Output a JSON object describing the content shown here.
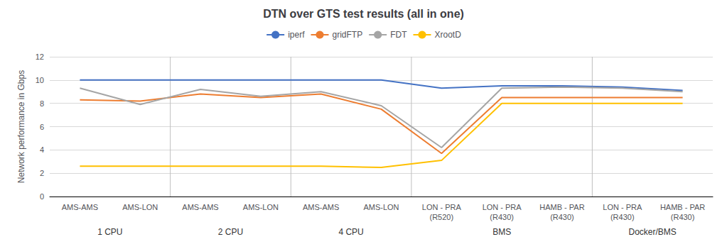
{
  "chart_data": {
    "type": "line",
    "title": "DTN over GTS test results (all in one)",
    "ylabel": "Network performance in Gbps",
    "categories": [
      "AMS-AMS",
      "AMS-LON",
      "AMS-AMS",
      "AMS-LON",
      "AMS-AMS",
      "AMS-LON",
      "LON - PRA\n(R520)",
      "LON - PRA\n(R430)",
      "HAMB - PAR\n(R430)",
      "LON - PRA\n(R430)",
      "HAMB - PAR\n(R430)"
    ],
    "series": [
      {
        "name": "iperf",
        "color": "#4472C4",
        "values": [
          10.0,
          10.0,
          10.0,
          10.0,
          10.0,
          10.0,
          9.3,
          9.5,
          9.5,
          9.4,
          9.1
        ]
      },
      {
        "name": "gridFTP",
        "color": "#ED7D31",
        "values": [
          8.3,
          8.2,
          8.8,
          8.5,
          8.8,
          7.5,
          3.7,
          8.5,
          8.5,
          8.5,
          8.5
        ]
      },
      {
        "name": "FDT",
        "color": "#A5A5A5",
        "values": [
          9.3,
          7.9,
          9.2,
          8.6,
          9.0,
          7.8,
          4.2,
          9.3,
          9.4,
          9.3,
          9.0
        ]
      },
      {
        "name": "XrootD",
        "color": "#FFC000",
        "values": [
          2.6,
          2.6,
          2.6,
          2.6,
          2.6,
          2.5,
          3.1,
          8.0,
          8.0,
          8.0,
          8.0
        ]
      }
    ],
    "annotations": [
      {
        "text": "1 CPU",
        "x": 0.5
      },
      {
        "text": "2 CPU",
        "x": 2.5
      },
      {
        "text": "4 CPU",
        "x": 4.5
      },
      {
        "text": "BMS",
        "x": 7.0
      },
      {
        "text": "Docker/BMS",
        "x": 9.5
      }
    ],
    "ylim": [
      0,
      12
    ],
    "yticks": [
      0,
      2,
      4,
      6,
      8,
      10,
      12
    ],
    "grid": true,
    "legend": "top"
  }
}
